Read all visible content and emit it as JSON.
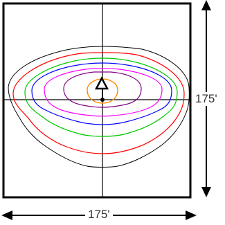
{
  "diagram": {
    "dimension_vertical": "175'",
    "dimension_horizontal": "175'",
    "contour_colors": [
      "#000000",
      "#ff0000",
      "#00c800",
      "#0000ff",
      "#ff00ff",
      "#800080",
      "#ff8c00"
    ],
    "fixture_icon": "triangle-marker-icon"
  }
}
